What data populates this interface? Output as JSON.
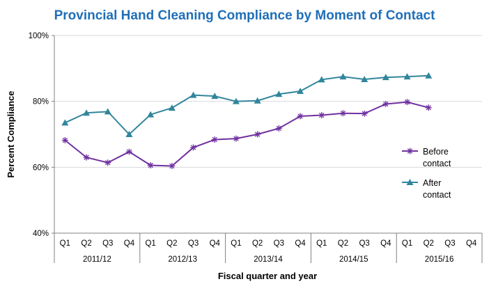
{
  "colors": {
    "title": "#1F6FB8",
    "before": "#7030A0",
    "after": "#31859C",
    "grid": "#D9D9D9",
    "axis": "#808080"
  },
  "chart_data": {
    "type": "line",
    "title": "Provincial Hand Cleaning Compliance by Moment of Contact",
    "xlabel": "Fiscal quarter and year",
    "ylabel": "Percent Compliance",
    "ylim": [
      40,
      100
    ],
    "y_ticks": [
      {
        "value": 40,
        "label": "40%"
      },
      {
        "value": 60,
        "label": "60%"
      },
      {
        "value": 80,
        "label": "80%"
      },
      {
        "value": 100,
        "label": "100%"
      }
    ],
    "grid": "horizontal",
    "legend_position": "right",
    "categories": [
      "Q1",
      "Q2",
      "Q3",
      "Q4",
      "Q1",
      "Q2",
      "Q3",
      "Q4",
      "Q1",
      "Q2",
      "Q3",
      "Q4",
      "Q1",
      "Q2",
      "Q3",
      "Q4",
      "Q1",
      "Q2",
      "Q3",
      "Q4"
    ],
    "year_groups": [
      "2011/12",
      "2012/13",
      "2013/14",
      "2014/15",
      "2015/16"
    ],
    "series": [
      {
        "name": "Before contact",
        "name_lines": [
          "Before",
          "contact"
        ],
        "marker": "asterisk",
        "values": [
          68.2,
          63.0,
          61.4,
          64.7,
          60.6,
          60.4,
          66.0,
          68.4,
          68.7,
          70.0,
          71.8,
          75.5,
          75.8,
          76.4,
          76.3,
          79.2,
          79.8,
          78.1,
          null,
          null
        ]
      },
      {
        "name": "After contact",
        "name_lines": [
          "After",
          "contact"
        ],
        "marker": "triangle",
        "values": [
          73.5,
          76.5,
          76.9,
          70.0,
          76.0,
          78.0,
          81.9,
          81.6,
          80.0,
          80.2,
          82.2,
          83.1,
          86.6,
          87.5,
          86.7,
          87.3,
          87.5,
          87.8,
          null,
          null
        ]
      }
    ]
  }
}
